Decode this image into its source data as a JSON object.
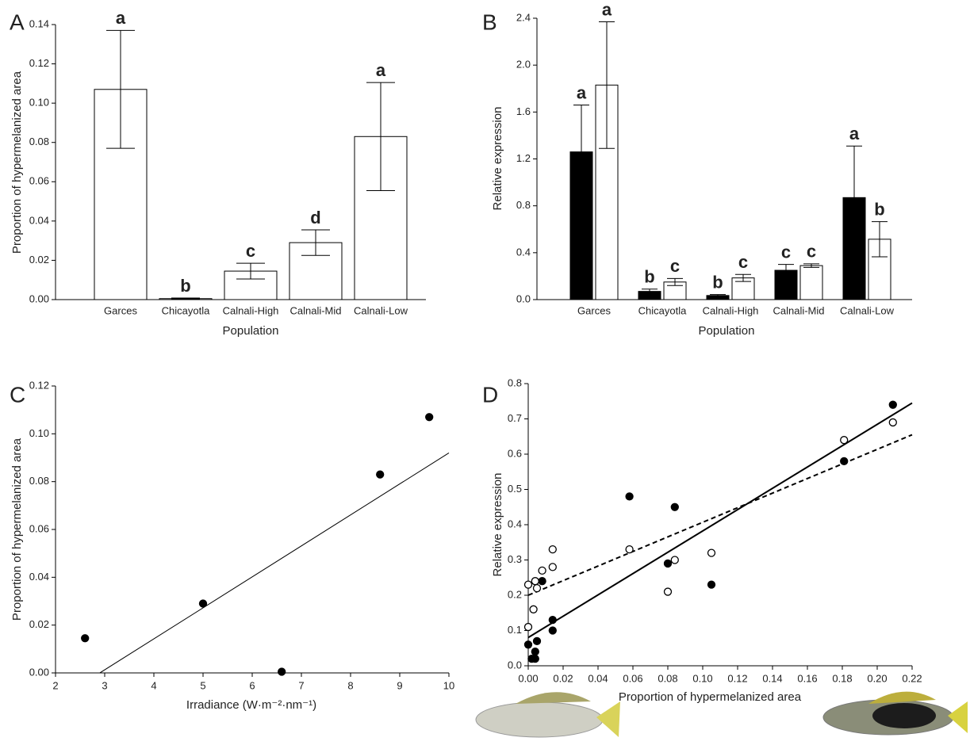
{
  "chart_data": [
    {
      "type": "bar",
      "panel_label": "A",
      "ylabel": "Proportion of hypermelanized area",
      "xlabel": "Population",
      "categories": [
        "Garces",
        "Chicayotla",
        "Calnali-High",
        "Calnali-Mid",
        "Calnali-Low"
      ],
      "values": [
        0.107,
        0.0005,
        0.0145,
        0.029,
        0.083
      ],
      "errors": [
        0.03,
        0.0003,
        0.004,
        0.0065,
        0.0275
      ],
      "annotations": [
        "a",
        "b",
        "c",
        "d",
        "a"
      ],
      "color": "#ffffff",
      "ylim": [
        0,
        0.14
      ],
      "yticks": [
        {
          "value": 0,
          "label": "0.00"
        },
        0.02,
        0.04,
        0.06,
        0.08,
        {
          "value": 0.1,
          "label": "0.10"
        },
        0.12,
        0.14
      ]
    },
    {
      "type": "bar",
      "panel_label": "B",
      "ylabel": "Relative expression",
      "xlabel": "Population",
      "categories": [
        "Garces",
        "Chicayotla",
        "Calnali-High",
        "Calnali-Mid",
        "Calnali-Low"
      ],
      "series": [
        {
          "color": "#000000",
          "values": [
            1.26,
            0.07,
            0.035,
            0.25,
            0.87
          ],
          "errors": [
            0.4,
            0.02,
            0.008,
            0.05,
            0.44
          ],
          "annotations": [
            "a",
            "b",
            "b",
            "c",
            "a"
          ]
        },
        {
          "color": "#ffffff",
          "values": [
            1.83,
            0.15,
            0.185,
            0.29,
            0.515
          ],
          "errors": [
            0.54,
            0.03,
            0.03,
            0.015,
            0.15
          ],
          "annotations": [
            "a",
            "c",
            "c",
            "c",
            "b"
          ]
        }
      ],
      "ylim": [
        0,
        2.4
      ],
      "yticks": [
        {
          "value": 0,
          "label": "0.0"
        },
        0.4,
        0.8,
        1.2,
        1.6,
        {
          "value": 2,
          "label": "2.0"
        },
        2.4
      ]
    },
    {
      "type": "scatter",
      "panel_label": "C",
      "ylabel": "Proportion of hypermelanized area",
      "xlabel": "Irradiance (W·m⁻²·nm⁻¹)",
      "series": [
        {
          "color": "#000000",
          "x": [
            2.6,
            5.0,
            6.6,
            8.6,
            9.6
          ],
          "y": [
            0.0145,
            0.029,
            0.0005,
            0.083,
            0.107
          ],
          "trend_line": {
            "x": [
              2.9,
              10
            ],
            "y": [
              0,
              0.092
            ],
            "style": "thin"
          }
        }
      ],
      "xlim": [
        2,
        10
      ],
      "xticks": [
        2,
        3,
        4,
        5,
        6,
        7,
        8,
        9,
        10
      ],
      "ylim": [
        0,
        0.12
      ],
      "yticks": [
        {
          "value": 0,
          "label": "0.00"
        },
        0.02,
        0.04,
        0.06,
        0.08,
        {
          "value": 0.1,
          "label": "0.10"
        },
        0.12
      ]
    },
    {
      "type": "scatter",
      "panel_label": "D",
      "ylabel": "Relative expression",
      "xlabel": "Proportion of hypermelanized area",
      "series": [
        {
          "color": "#000000",
          "x": [
            0,
            0.002,
            0.004,
            0.004,
            0.005,
            0.008,
            0.014,
            0.014,
            0.058,
            0.08,
            0.084,
            0.105,
            0.181,
            0.209
          ],
          "y": [
            0.06,
            0.02,
            0.02,
            0.04,
            0.07,
            0.24,
            0.13,
            0.1,
            0.48,
            0.29,
            0.45,
            0.23,
            0.58,
            0.74
          ],
          "trend_line": {
            "x": [
              0,
              0.22
            ],
            "y": [
              0.08,
              0.745
            ],
            "style": "solid"
          }
        },
        {
          "color": "#ffffff",
          "x": [
            0,
            0,
            0.003,
            0.004,
            0.005,
            0.008,
            0.014,
            0.014,
            0.058,
            0.08,
            0.084,
            0.105,
            0.181,
            0.209
          ],
          "y": [
            0.23,
            0.11,
            0.16,
            0.24,
            0.22,
            0.27,
            0.33,
            0.28,
            0.33,
            0.21,
            0.3,
            0.32,
            0.64,
            0.69
          ],
          "trend_line": {
            "x": [
              0,
              0.22
            ],
            "y": [
              0.2,
              0.655
            ],
            "style": "dashed"
          }
        }
      ],
      "xlim": [
        0,
        0.22
      ],
      "xticks": [
        {
          "value": 0,
          "label": "0.00"
        },
        0.02,
        0.04,
        0.06,
        0.08,
        {
          "value": 0.1,
          "label": "0.10"
        },
        0.12,
        0.14,
        0.16,
        0.18,
        {
          "value": 0.2,
          "label": "0.20"
        },
        0.22
      ],
      "ylim": [
        0,
        0.8
      ],
      "yticks": [
        {
          "value": 0,
          "label": "0.0"
        },
        0.1,
        0.2,
        0.3,
        0.4,
        0.5,
        0.6,
        0.7,
        0.8
      ]
    }
  ]
}
